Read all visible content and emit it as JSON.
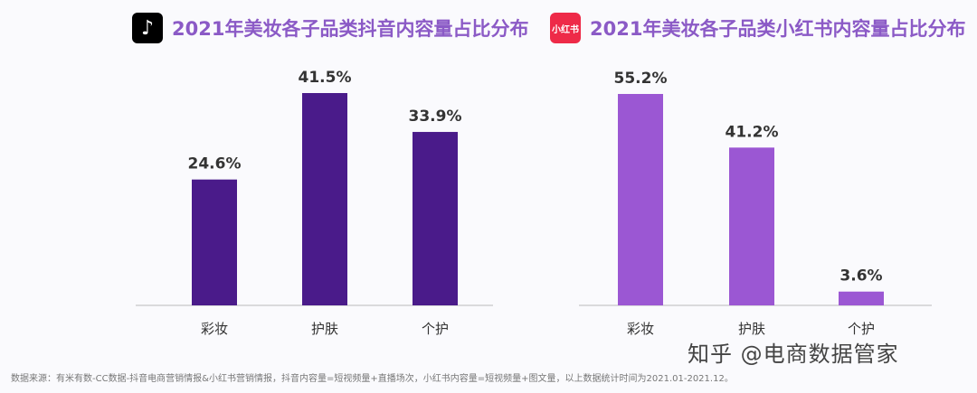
{
  "chart_data": [
    {
      "type": "bar",
      "title": "2021年美妆各子品类抖音内容量占比分布",
      "logo": "douyin-icon",
      "categories": [
        "彩妆",
        "护肤",
        "个护"
      ],
      "values": [
        24.6,
        41.5,
        33.9
      ],
      "labels": [
        "24.6%",
        "41.5%",
        "33.9%"
      ],
      "color": "#4a1b8a",
      "grid": false
    },
    {
      "type": "bar",
      "title": "2021年美妆各子品类小红书内容量占比分布",
      "logo": "xiaohongshu-icon",
      "logo_text": "小红书",
      "categories": [
        "彩妆",
        "护肤",
        "个护"
      ],
      "values": [
        55.2,
        41.2,
        3.6
      ],
      "labels": [
        "55.2%",
        "41.2%",
        "3.6%"
      ],
      "color": "#9b57d3",
      "grid": false
    }
  ],
  "footer": "数据来源：有米有数-CC数据-抖音电商营销情报&小红书营销情报，抖音内容量=短视频量+直播场次，小红书内容量=短视频量+图文量，以上数据统计时间为2021.01-2021.12。",
  "watermark": "知乎 @电商数据管家"
}
